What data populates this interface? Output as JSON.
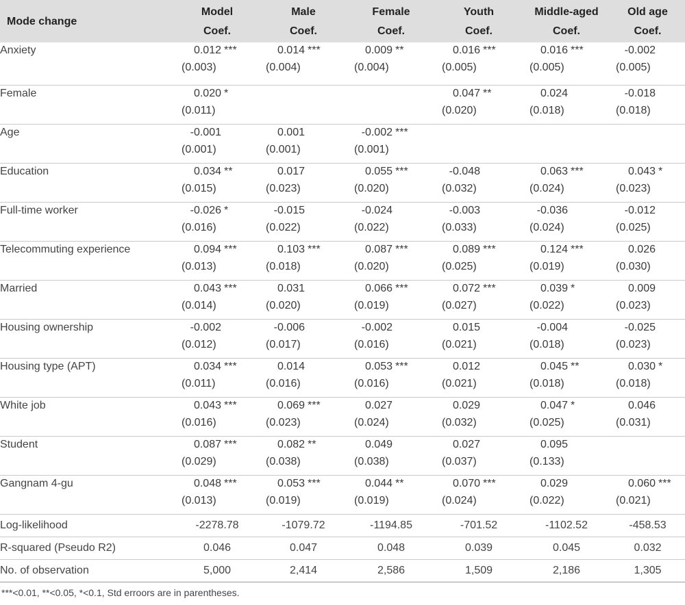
{
  "header": {
    "title": "Mode change",
    "columns": [
      {
        "name": "Model",
        "sub": "Coef."
      },
      {
        "name": "Male",
        "sub": "Coef."
      },
      {
        "name": "Female",
        "sub": "Coef."
      },
      {
        "name": "Youth",
        "sub": "Coef."
      },
      {
        "name": "Middle-aged",
        "sub": "Coef."
      },
      {
        "name": "Old age",
        "sub": "Coef."
      }
    ]
  },
  "rows": [
    {
      "label": "Anxiety",
      "cells": [
        {
          "coef": "0.012",
          "star": "***",
          "se": "(0.003)"
        },
        {
          "coef": "0.014",
          "star": "***",
          "se": "(0.004)"
        },
        {
          "coef": "0.009",
          "star": "**",
          "se": "(0.004)"
        },
        {
          "coef": "0.016",
          "star": "***",
          "se": "(0.005)"
        },
        {
          "coef": "0.016",
          "star": "***",
          "se": "(0.005)"
        },
        {
          "coef": "-0.002",
          "star": "",
          "se": "(0.005)"
        }
      ]
    },
    {
      "label": "Female",
      "cells": [
        {
          "coef": "0.020",
          "star": "*",
          "se": "(0.011)"
        },
        {
          "coef": "",
          "star": "",
          "se": ""
        },
        {
          "coef": "",
          "star": "",
          "se": ""
        },
        {
          "coef": "0.047",
          "star": "**",
          "se": "(0.020)"
        },
        {
          "coef": "0.024",
          "star": "",
          "se": "(0.018)"
        },
        {
          "coef": "-0.018",
          "star": "",
          "se": "(0.018)"
        }
      ]
    },
    {
      "label": "Age",
      "cells": [
        {
          "coef": "-0.001",
          "star": "",
          "se": "(0.001)"
        },
        {
          "coef": "0.001",
          "star": "",
          "se": "(0.001)"
        },
        {
          "coef": "-0.002",
          "star": "***",
          "se": "(0.001)"
        },
        {
          "coef": "",
          "star": "",
          "se": ""
        },
        {
          "coef": "",
          "star": "",
          "se": ""
        },
        {
          "coef": "",
          "star": "",
          "se": ""
        }
      ]
    },
    {
      "label": "Education",
      "cells": [
        {
          "coef": "0.034",
          "star": "**",
          "se": "(0.015)"
        },
        {
          "coef": "0.017",
          "star": "",
          "se": "(0.023)"
        },
        {
          "coef": "0.055",
          "star": "***",
          "se": "(0.020)"
        },
        {
          "coef": "-0.048",
          "star": "",
          "se": "(0.032)"
        },
        {
          "coef": "0.063",
          "star": "***",
          "se": "(0.024)"
        },
        {
          "coef": "0.043",
          "star": "*",
          "se": "(0.023)"
        }
      ]
    },
    {
      "label": "Full-time worker",
      "cells": [
        {
          "coef": "-0.026",
          "star": "*",
          "se": "(0.016)"
        },
        {
          "coef": "-0.015",
          "star": "",
          "se": "(0.022)"
        },
        {
          "coef": "-0.024",
          "star": "",
          "se": "(0.022)"
        },
        {
          "coef": "-0.003",
          "star": "",
          "se": "(0.033)"
        },
        {
          "coef": "-0.036",
          "star": "",
          "se": "(0.024)"
        },
        {
          "coef": "-0.012",
          "star": "",
          "se": "(0.025)"
        }
      ]
    },
    {
      "label": "Telecommuting experience",
      "cells": [
        {
          "coef": "0.094",
          "star": "***",
          "se": "(0.013)"
        },
        {
          "coef": "0.103",
          "star": "***",
          "se": "(0.018)"
        },
        {
          "coef": "0.087",
          "star": "***",
          "se": "(0.020)"
        },
        {
          "coef": "0.089",
          "star": "***",
          "se": "(0.025)"
        },
        {
          "coef": "0.124",
          "star": "***",
          "se": "(0.019)"
        },
        {
          "coef": "0.026",
          "star": "",
          "se": "(0.030)"
        }
      ]
    },
    {
      "label": "Married",
      "cells": [
        {
          "coef": "0.043",
          "star": "***",
          "se": "(0.014)"
        },
        {
          "coef": "0.031",
          "star": "",
          "se": "(0.020)"
        },
        {
          "coef": "0.066",
          "star": "***",
          "se": "(0.019)"
        },
        {
          "coef": "0.072",
          "star": "***",
          "se": "(0.027)"
        },
        {
          "coef": "0.039",
          "star": "*",
          "se": "(0.022)"
        },
        {
          "coef": "0.009",
          "star": "",
          "se": "(0.023)"
        }
      ]
    },
    {
      "label": "Housing ownership",
      "cells": [
        {
          "coef": "-0.002",
          "star": "",
          "se": "(0.012)"
        },
        {
          "coef": "-0.006",
          "star": "",
          "se": "(0.017)"
        },
        {
          "coef": "-0.002",
          "star": "",
          "se": "(0.016)"
        },
        {
          "coef": "0.015",
          "star": "",
          "se": "(0.021)"
        },
        {
          "coef": "-0.004",
          "star": "",
          "se": "(0.018)"
        },
        {
          "coef": "-0.025",
          "star": "",
          "se": "(0.023)"
        }
      ]
    },
    {
      "label": "Housing type (APT)",
      "cells": [
        {
          "coef": "0.034",
          "star": "***",
          "se": "(0.011)"
        },
        {
          "coef": "0.014",
          "star": "",
          "se": "(0.016)"
        },
        {
          "coef": "0.053",
          "star": "***",
          "se": "(0.016)"
        },
        {
          "coef": "0.012",
          "star": "",
          "se": "(0.021)"
        },
        {
          "coef": "0.045",
          "star": "**",
          "se": "(0.018)"
        },
        {
          "coef": "0.030",
          "star": "*",
          "se": "(0.018)"
        }
      ]
    },
    {
      "label": "White job",
      "cells": [
        {
          "coef": "0.043",
          "star": "***",
          "se": "(0.016)"
        },
        {
          "coef": "0.069",
          "star": "***",
          "se": "(0.023)"
        },
        {
          "coef": "0.027",
          "star": "",
          "se": "(0.024)"
        },
        {
          "coef": "0.029",
          "star": "",
          "se": "(0.032)"
        },
        {
          "coef": "0.047",
          "star": "*",
          "se": "(0.025)"
        },
        {
          "coef": "0.046",
          "star": "",
          "se": "(0.031)"
        }
      ]
    },
    {
      "label": "Student",
      "cells": [
        {
          "coef": "0.087",
          "star": "***",
          "se": "(0.029)"
        },
        {
          "coef": "0.082",
          "star": "**",
          "se": "(0.038)"
        },
        {
          "coef": "0.049",
          "star": "",
          "se": "(0.038)"
        },
        {
          "coef": "0.027",
          "star": "",
          "se": "(0.037)"
        },
        {
          "coef": "0.095",
          "star": "",
          "se": "(0.133)"
        },
        {
          "coef": "",
          "star": "",
          "se": ""
        }
      ]
    },
    {
      "label": "Gangnam 4-gu",
      "cells": [
        {
          "coef": "0.048",
          "star": "***",
          "se": "(0.013)"
        },
        {
          "coef": "0.053",
          "star": "***",
          "se": "(0.019)"
        },
        {
          "coef": "0.044",
          "star": "**",
          "se": "(0.019)"
        },
        {
          "coef": "0.070",
          "star": "***",
          "se": "(0.024)"
        },
        {
          "coef": "0.029",
          "star": "",
          "se": "(0.022)"
        },
        {
          "coef": "0.060",
          "star": "***",
          "se": "(0.021)"
        }
      ]
    }
  ],
  "stats": [
    {
      "label": "Log-likelihood",
      "values": [
        "-2278.78",
        "-1079.72",
        "-1194.85",
        "-701.52",
        "-1102.52",
        "-458.53"
      ]
    },
    {
      "label": "R-squared (Pseudo R2)",
      "values": [
        "0.046",
        "0.047",
        "0.048",
        "0.039",
        "0.045",
        "0.032"
      ]
    },
    {
      "label": "No. of observation",
      "values": [
        "5,000",
        "2,414",
        "2,586",
        "1,509",
        "2,186",
        "1,305"
      ]
    }
  ],
  "note": "***<0.01, **<0.05, *<0.1, Std erroors are in parentheses."
}
